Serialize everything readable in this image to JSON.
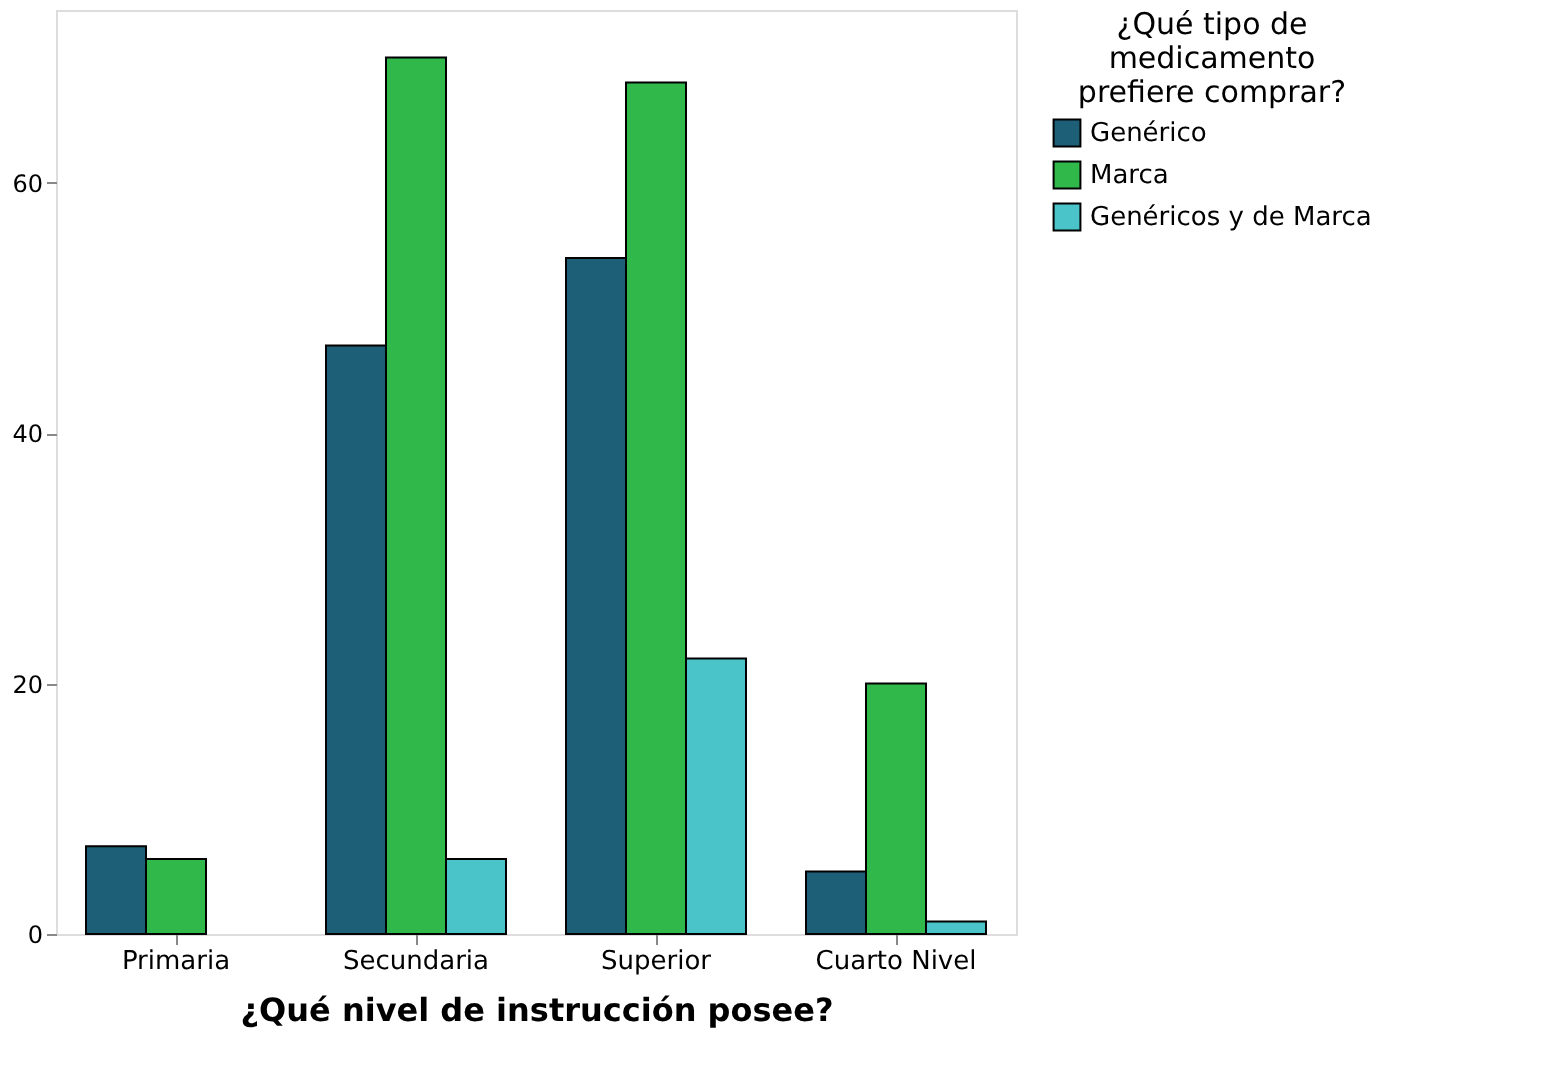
{
  "chart_data": {
    "type": "bar",
    "xlabel": "¿Qué nivel de instrucción posee?",
    "legend_title": "¿Qué tipo de medicamento prefiere comprar?",
    "categories": [
      "Primaria",
      "Secundaria",
      "Superior",
      "Cuarto Nivel"
    ],
    "series": [
      {
        "name": "Genérico",
        "color": "#1d5f76",
        "values": [
          7,
          47,
          54,
          5
        ]
      },
      {
        "name": "Marca",
        "color": "#31b84a",
        "values": [
          6,
          70,
          68,
          20
        ]
      },
      {
        "name": "Genéricos y de Marca",
        "color": "#4ac3c9",
        "values": [
          null,
          6,
          22,
          1
        ]
      }
    ],
    "ylim": [
      0,
      73.8
    ],
    "yticks": [
      0,
      20,
      40,
      60
    ],
    "grid": false,
    "legend": "right"
  }
}
